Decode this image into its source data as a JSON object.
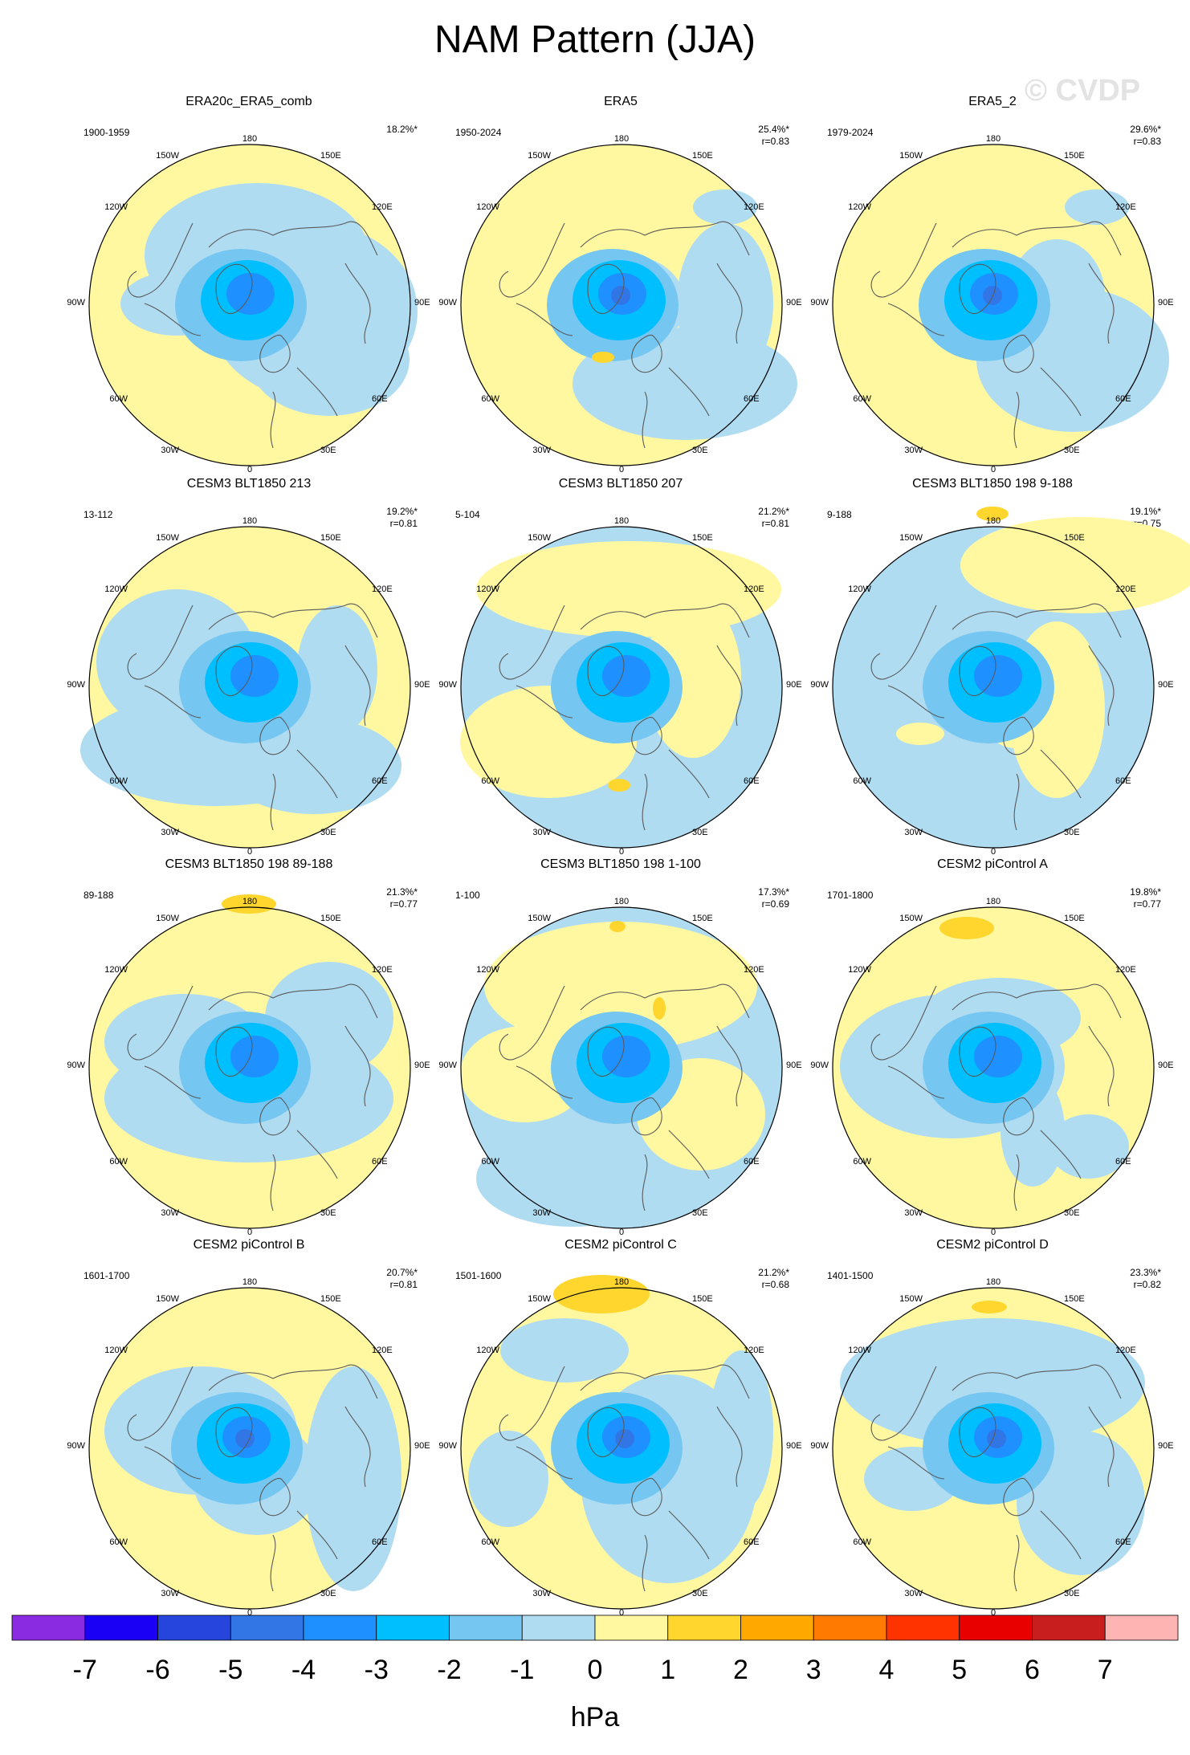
{
  "title": "NAM Pattern (JJA)",
  "watermark": "© CVDP",
  "units": "hPa",
  "colorbar": {
    "ticks": [
      "-7",
      "-6",
      "-5",
      "-4",
      "-3",
      "-2",
      "-1",
      "0",
      "1",
      "2",
      "3",
      "4",
      "5",
      "6",
      "7"
    ],
    "colors": [
      "#8a2be2",
      "#1a00f5",
      "#2545dc",
      "#3276e6",
      "#1e90ff",
      "#00bfff",
      "#75c6f0",
      "#b0dcf2",
      "#fff8a0",
      "#fed62d",
      "#ffa800",
      "#ff7a00",
      "#ff3300",
      "#e80000",
      "#c81e1e",
      "#ffb4b4"
    ]
  },
  "chart_data": [
    {
      "type": "heatmap",
      "title": "ERA20c_ERA5_comb",
      "period": "1900-1959",
      "pct": "18.2%*",
      "r": "",
      "variant": "a"
    },
    {
      "type": "heatmap",
      "title": "ERA5",
      "period": "1950-2024",
      "pct": "25.4%*",
      "r": "r=0.83",
      "variant": "b"
    },
    {
      "type": "heatmap",
      "title": "ERA5_2",
      "period": "1979-2024",
      "pct": "29.6%*",
      "r": "r=0.83",
      "variant": "c"
    },
    {
      "type": "heatmap",
      "title": "CESM3 BLT1850 213",
      "period": "13-112",
      "pct": "19.2%*",
      "r": "r=0.81",
      "variant": "d"
    },
    {
      "type": "heatmap",
      "title": "CESM3 BLT1850 207",
      "period": "5-104",
      "pct": "21.2%*",
      "r": "r=0.81",
      "variant": "e"
    },
    {
      "type": "heatmap",
      "title": "CESM3 BLT1850 198 9-188",
      "period": "9-188",
      "pct": "19.1%*",
      "r": "r=0.75",
      "variant": "f"
    },
    {
      "type": "heatmap",
      "title": "CESM3 BLT1850 198 89-188",
      "period": "89-188",
      "pct": "21.3%*",
      "r": "r=0.77",
      "variant": "g"
    },
    {
      "type": "heatmap",
      "title": "CESM3 BLT1850 198 1-100",
      "period": "1-100",
      "pct": "17.3%*",
      "r": "r=0.69",
      "variant": "h"
    },
    {
      "type": "heatmap",
      "title": "CESM2 piControl A",
      "period": "1701-1800",
      "pct": "19.8%*",
      "r": "r=0.77",
      "variant": "i"
    },
    {
      "type": "heatmap",
      "title": "CESM2 piControl B",
      "period": "1601-1700",
      "pct": "20.7%*",
      "r": "r=0.81",
      "variant": "j"
    },
    {
      "type": "heatmap",
      "title": "CESM2 piControl C",
      "period": "1501-1600",
      "pct": "21.2%*",
      "r": "r=0.68",
      "variant": "k"
    },
    {
      "type": "heatmap",
      "title": "CESM2 piControl D",
      "period": "1401-1500",
      "pct": "23.3%*",
      "r": "r=0.82",
      "variant": "l"
    }
  ],
  "lon_labels": [
    "180",
    "150E",
    "120E",
    "90E",
    "60E",
    "30E",
    "0",
    "30W",
    "60W",
    "90W",
    "120W",
    "150W"
  ]
}
